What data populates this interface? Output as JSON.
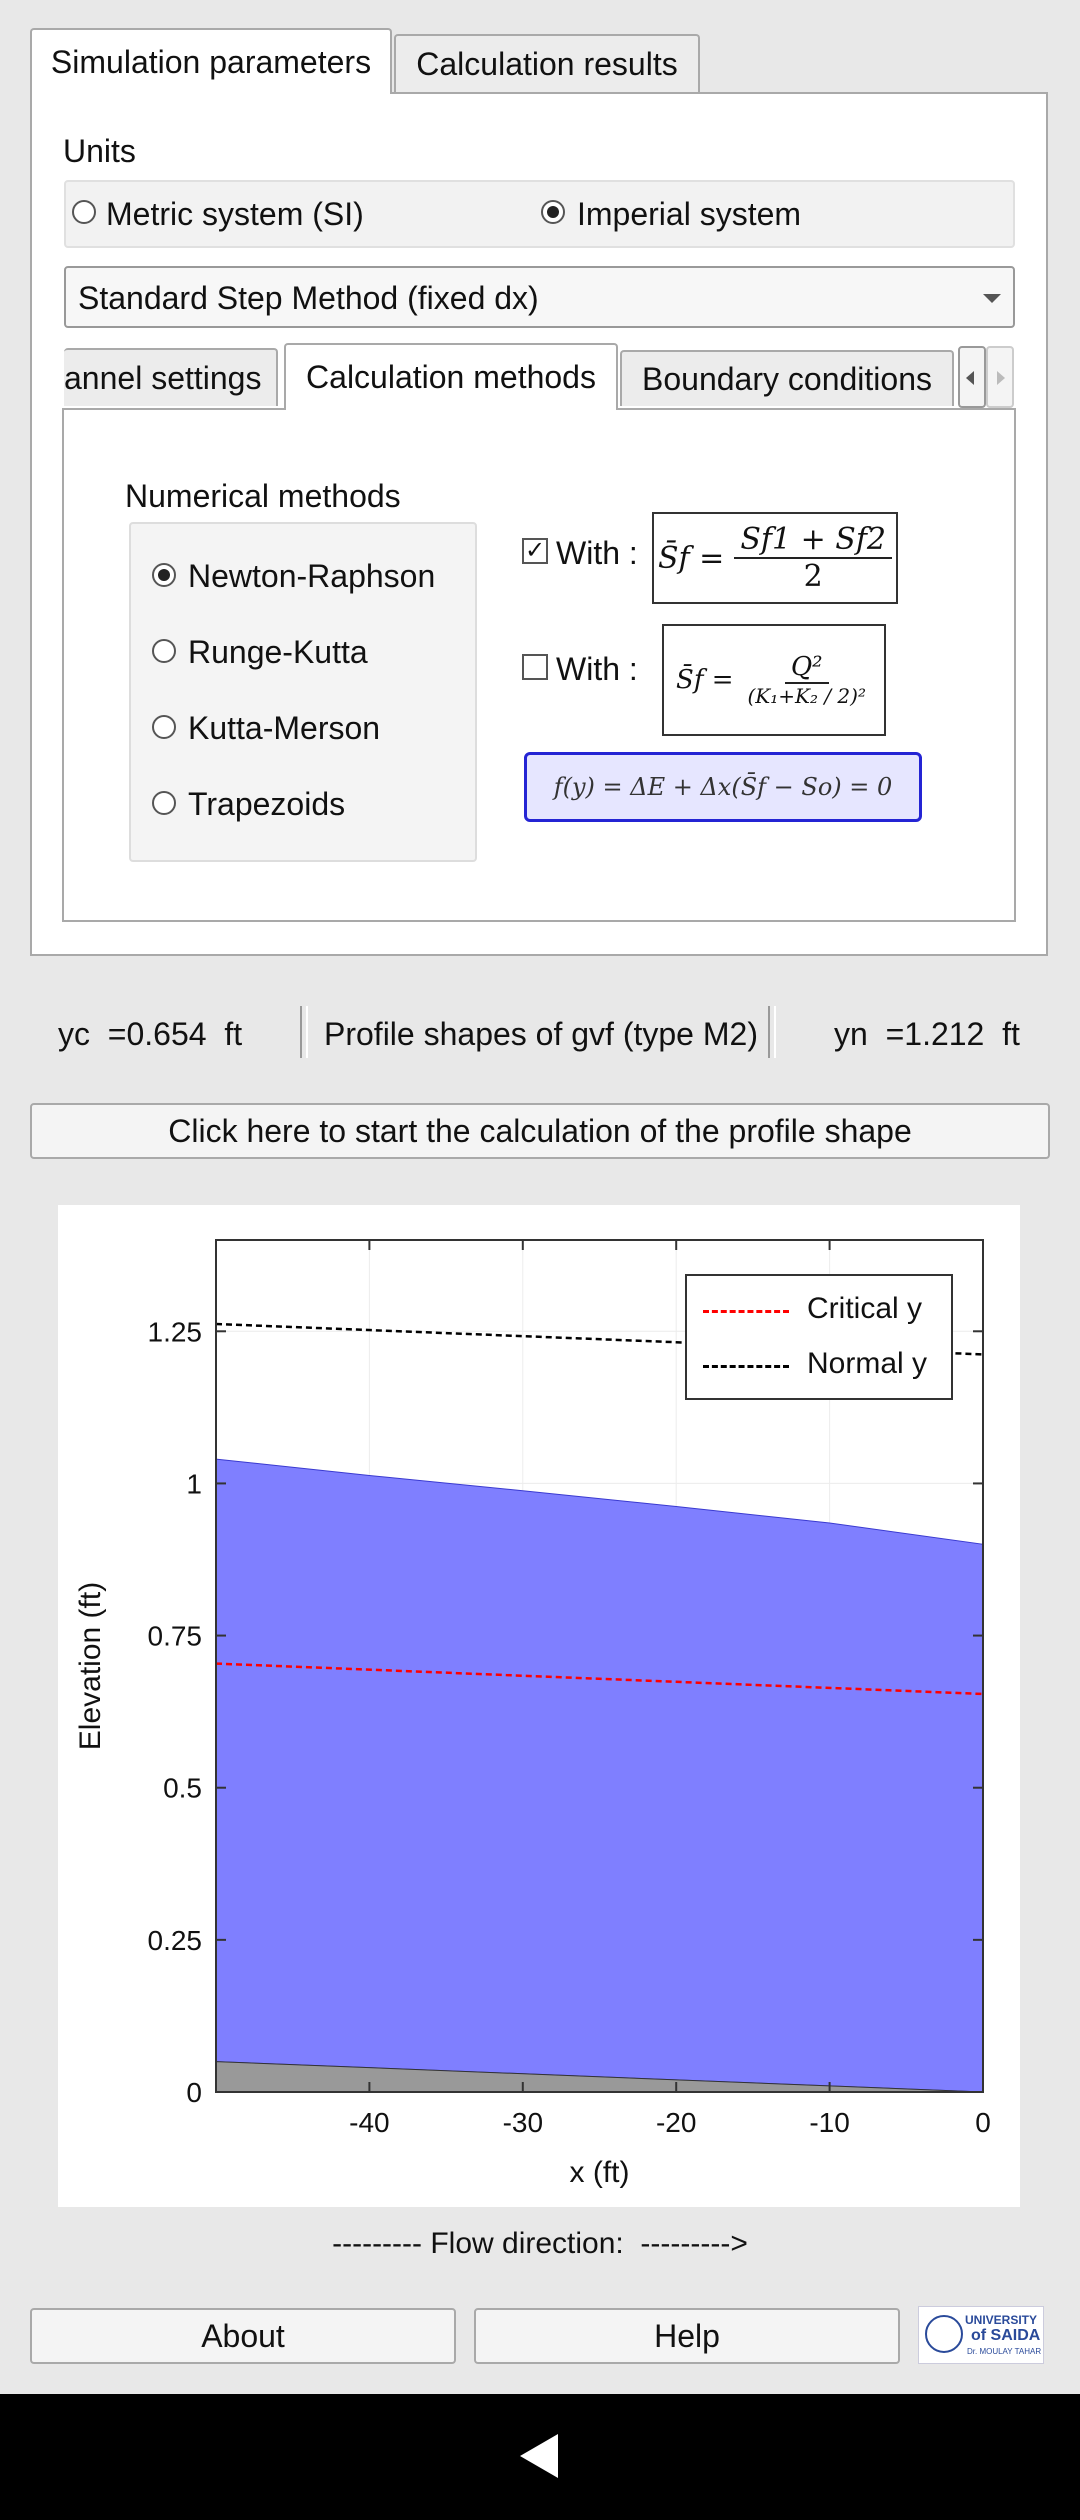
{
  "main_tabs": [
    "Simulation parameters",
    "Calculation results"
  ],
  "units": {
    "label": "Units",
    "options": [
      "Metric system (SI)",
      "Imperial system"
    ],
    "selected": 1
  },
  "method_select": {
    "value": "Standard Step Method (fixed dx)"
  },
  "sub_tabs": [
    "annel settings",
    "Calculation methods",
    "Boundary conditions"
  ],
  "numerical": {
    "label": "Numerical methods",
    "options": [
      "Newton-Raphson",
      "Runge-Kutta",
      "Kutta-Merson",
      "Trapezoids"
    ],
    "selected": 0
  },
  "with_label": "With :",
  "formula1": {
    "lhs": "S̄f =",
    "num": "Sf1 + Sf2",
    "den": "2",
    "checked": true
  },
  "formula2": {
    "lhs": "S̄f =",
    "num": "Q²",
    "den": "(K₁+K₂ / 2)²",
    "checked": false
  },
  "equation": "f(y) = ΔE + Δx(S̄f − So) = 0",
  "info_bar": {
    "yc": "yc  =0.654  ft",
    "profile": "Profile shapes of gvf (type M2)",
    "yn": "yn  =1.212  ft"
  },
  "start_button": "Click here to start the calculation of the profile shape",
  "chart_data": {
    "type": "area",
    "xlabel": "x (ft)",
    "ylabel": "Elevation (ft)",
    "xlim": [
      -50,
      0
    ],
    "ylim": [
      0,
      1.4
    ],
    "xticks": [
      -40,
      -30,
      -20,
      -10,
      0
    ],
    "yticks": [
      0,
      0.25,
      0.5,
      0.75,
      1,
      1.25
    ],
    "ytick_labels": [
      "0",
      "0.25",
      "0.5",
      "0.75",
      "1",
      "1.25"
    ],
    "grid": true,
    "legend_position": "top-right",
    "series": [
      {
        "name": "Critical y",
        "kind": "line",
        "color": "#ff0000",
        "dash": true,
        "x": [
          -50,
          0
        ],
        "y": [
          0.704,
          0.654
        ]
      },
      {
        "name": "Normal y",
        "kind": "line",
        "color": "#000000",
        "dash": true,
        "x": [
          -50,
          0
        ],
        "y": [
          1.262,
          1.212
        ]
      },
      {
        "kind": "water-surface",
        "color": "#7f7fff",
        "x": [
          -50,
          -40,
          -30,
          -20,
          -10,
          0
        ],
        "y": [
          1.04,
          1.013,
          0.988,
          0.962,
          0.935,
          0.9
        ]
      },
      {
        "kind": "channel-bed",
        "color": "#999999",
        "x": [
          -50,
          0
        ],
        "y": [
          0.05,
          0
        ]
      }
    ]
  },
  "flow_direction": "--------- Flow direction:  --------->",
  "bottom_buttons": {
    "about": "About",
    "help": "Help"
  },
  "logo_text": {
    "line1": "UNIVERSITY",
    "line2": "of SAIDA",
    "line3": "Dr. MOULAY TAHAR"
  }
}
